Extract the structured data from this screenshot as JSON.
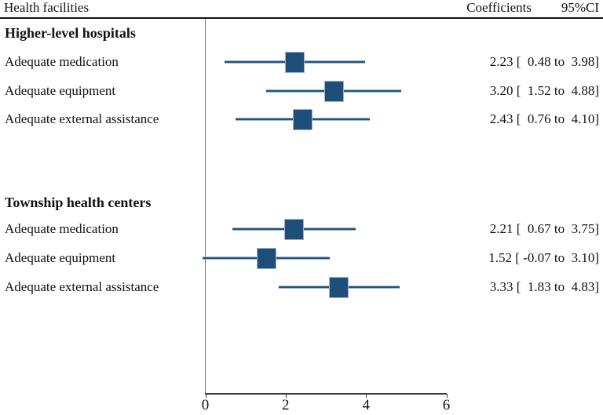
{
  "header": {
    "facilities": "Health facilities",
    "coefficients": "Coefficients",
    "ci": "95%CI"
  },
  "chart_data": {
    "type": "forest",
    "xlim": [
      0,
      6
    ],
    "x_ticks": [
      "0",
      "2",
      "4",
      "6"
    ],
    "x_tick_values": [
      0,
      2,
      4,
      6
    ],
    "grid": false,
    "marker_color": "#1f4e79",
    "marker_edge_color": "#9fb4c9",
    "line_core_color": "#24527e",
    "line_edge_color": "#9db4ca",
    "groups": [
      {
        "label": "Higher-level hospitals",
        "rows": [
          {
            "label": "Adequate medication",
            "coef": 2.23,
            "ci_low": 0.48,
            "ci_high": 3.98,
            "display": "2.23 [  0.48 to  3.98]"
          },
          {
            "label": "Adequate equipment",
            "coef": 3.2,
            "ci_low": 1.52,
            "ci_high": 4.88,
            "display": "3.20 [  1.52 to  4.88]"
          },
          {
            "label": "Adequate external assistance",
            "coef": 2.43,
            "ci_low": 0.76,
            "ci_high": 4.1,
            "display": "2.43 [  0.76 to  4.10]"
          }
        ]
      },
      {
        "label": "Township health centers",
        "rows": [
          {
            "label": "Adequate medication",
            "coef": 2.21,
            "ci_low": 0.67,
            "ci_high": 3.75,
            "display": "2.21 [  0.67 to  3.75]"
          },
          {
            "label": "Adequate equipment",
            "coef": 1.52,
            "ci_low": -0.07,
            "ci_high": 3.1,
            "display": "1.52 [ -0.07 to  3.10]"
          },
          {
            "label": "Adequate external assistance",
            "coef": 3.33,
            "ci_low": 1.83,
            "ci_high": 4.83,
            "display": "3.33 [  1.83 to  4.83]"
          }
        ]
      }
    ]
  }
}
